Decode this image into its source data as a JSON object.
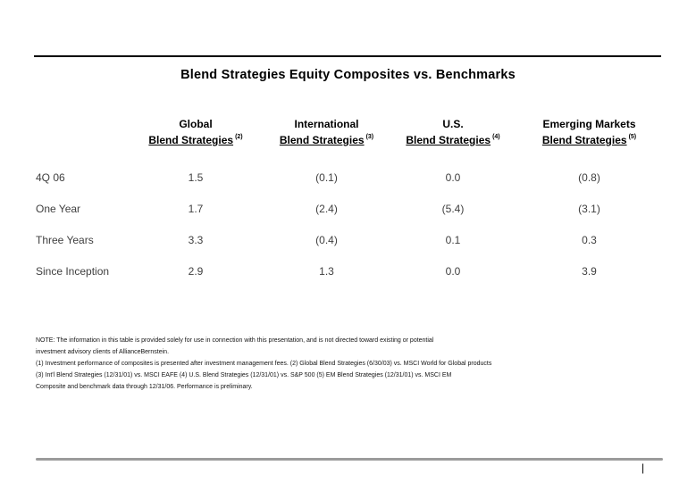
{
  "title": "Blend Strategies Equity Composites vs. Benchmarks",
  "table": {
    "columns": [
      {
        "line1": "Global",
        "line2": "Blend Strategies",
        "footnote_ref": "(2)"
      },
      {
        "line1": "International",
        "line2": "Blend Strategies",
        "footnote_ref": "(3)"
      },
      {
        "line1": "U.S.",
        "line2": "Blend Strategies",
        "footnote_ref": "(4)"
      },
      {
        "line1": "Emerging Markets",
        "line2": "Blend Strategies",
        "footnote_ref": "(5)"
      }
    ],
    "rows": [
      {
        "label": "4Q 06",
        "values": [
          "1.5",
          "(0.1)",
          "0.0",
          "(0.8)"
        ]
      },
      {
        "label": "One Year",
        "values": [
          "1.7",
          "(2.4)",
          "(5.4)",
          "(3.1)"
        ]
      },
      {
        "label": "Three Years",
        "values": [
          "3.3",
          "(0.4)",
          "0.1",
          "0.3"
        ]
      },
      {
        "label": "Since Inception",
        "values": [
          "2.9",
          "1.3",
          "0.0",
          "3.9"
        ]
      }
    ]
  },
  "footnotes": {
    "lines": [
      "NOTE: The information in this table is provided solely for use in connection with this presentation, and is not directed toward existing or potential",
      "investment advisory clients of AllianceBernstein.",
      "(1) Investment performance of composites is presented after investment management fees. (2) Global Blend Strategies (6/30/03) vs. MSCI World for Global products",
      "(3) Int'l Blend Strategies (12/31/01) vs. MSCI EAFE (4) U.S. Blend Strategies (12/31/01) vs. S&P 500 (5) EM Blend Strategies (12/31/01) vs. MSCI EM",
      "Composite and benchmark data through 12/31/06. Performance is preliminary."
    ]
  },
  "footer": {
    "mark": "|"
  },
  "colors": {
    "top_rule": "#000000",
    "bottom_rule": "#9b9b9b",
    "data_text": "#3f3f3f"
  }
}
